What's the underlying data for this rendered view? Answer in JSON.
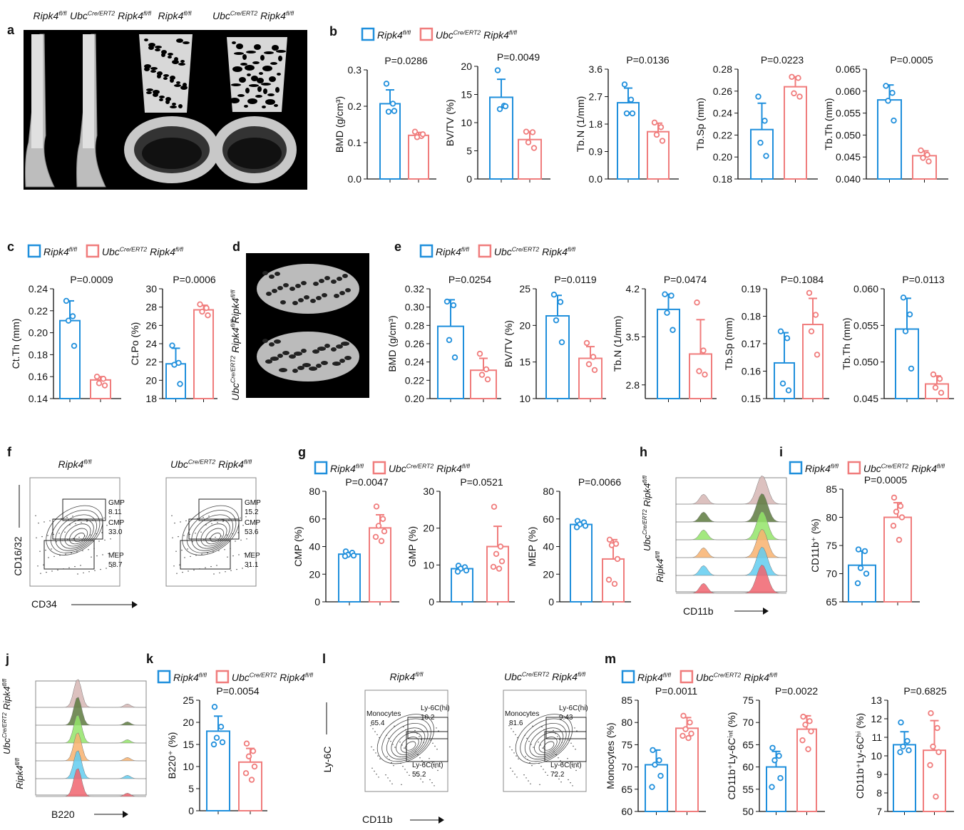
{
  "colors": {
    "control": "#1f8fdc",
    "knockout": "#f07c7c"
  },
  "genotypes": {
    "control": {
      "pre": "",
      "presup": "",
      "base": "Ripk4",
      "sup": "fl/fl"
    },
    "knockout": {
      "pre": "Ubc",
      "presup": "Cre/ERT2",
      "base": "Ripk4",
      "sup": "fl/fl"
    }
  },
  "panels": {
    "a": {
      "letter": "a"
    },
    "b": {
      "letter": "b"
    },
    "c": {
      "letter": "c"
    },
    "d": {
      "letter": "d"
    },
    "e": {
      "letter": "e"
    },
    "f": {
      "letter": "f"
    },
    "g": {
      "letter": "g"
    },
    "h": {
      "letter": "h"
    },
    "i": {
      "letter": "i"
    },
    "j": {
      "letter": "j"
    },
    "k": {
      "letter": "k"
    },
    "l": {
      "letter": "l"
    },
    "m": {
      "letter": "m"
    }
  },
  "flow": {
    "f": {
      "xlabel": "CD34",
      "ylabel": "CD16/32",
      "plots": [
        {
          "genotype": "control",
          "gates": [
            {
              "name": "GMP",
              "value": "8.11"
            },
            {
              "name": "CMP",
              "value": "33.0"
            },
            {
              "name": "MEP",
              "value": "58.7"
            }
          ]
        },
        {
          "genotype": "knockout",
          "gates": [
            {
              "name": "GMP",
              "value": "15.2"
            },
            {
              "name": "CMP",
              "value": "53.6"
            },
            {
              "name": "MEP",
              "value": "31.1"
            }
          ]
        }
      ]
    },
    "l": {
      "xlabel": "CD11b",
      "ylabel": "Ly-6C",
      "plots": [
        {
          "genotype": "control",
          "gates": [
            {
              "name": "Monocytes",
              "value": "65.4"
            },
            {
              "name": "Ly-6C(hi)",
              "value": "10.2"
            },
            {
              "name": "Ly-6C(int)",
              "value": "55.2"
            }
          ]
        },
        {
          "genotype": "knockout",
          "gates": [
            {
              "name": "Monocytes",
              "value": "81.6"
            },
            {
              "name": "Ly-6C(hi)",
              "value": "9.43"
            },
            {
              "name": "Ly-6C(int)",
              "value": "72.2"
            }
          ]
        }
      ]
    },
    "h": {
      "xlabel": "CD11b"
    },
    "j": {
      "xlabel": "B220"
    }
  },
  "chart_data": [
    {
      "id": "b1",
      "type": "bar",
      "panel": "b",
      "ylabel": "BMD (g/cm³)",
      "p_label": "P=0.0286",
      "ylim": [
        0,
        0.3
      ],
      "ticks": [
        "0.0",
        "0.1",
        "0.2",
        "0.3"
      ],
      "series": [
        {
          "group": "control",
          "mean": 0.207,
          "sd": 0.038,
          "points": [
            0.262,
            0.207,
            0.185,
            0.187
          ]
        },
        {
          "group": "knockout",
          "mean": 0.12,
          "sd": 0.008,
          "points": [
            0.13,
            0.118,
            0.115,
            0.123
          ]
        }
      ]
    },
    {
      "id": "b2",
      "type": "bar",
      "panel": "b",
      "ylabel": "BV/TV (%)",
      "p_label": "P=0.0049",
      "ylim": [
        0,
        20
      ],
      "ticks": [
        "0",
        "5",
        "10",
        "15",
        "20"
      ],
      "series": [
        {
          "group": "control",
          "mean": 14.5,
          "sd": 3.2,
          "points": [
            19.3,
            13,
            12.4,
            12.9
          ]
        },
        {
          "group": "knockout",
          "mean": 7,
          "sd": 1.4,
          "points": [
            8.4,
            8.3,
            6.5,
            5.5
          ]
        }
      ]
    },
    {
      "id": "b3",
      "type": "bar",
      "panel": "b",
      "ylabel": "Tb.N (1/mm)",
      "p_label": "P=0.0136",
      "ylim": [
        0,
        3.6
      ],
      "ticks": [
        "0.0",
        "0.9",
        "1.8",
        "2.7",
        "3.6"
      ],
      "series": [
        {
          "group": "control",
          "mean": 2.5,
          "sd": 0.48,
          "points": [
            3.1,
            2.6,
            2.15,
            2.15
          ]
        },
        {
          "group": "knockout",
          "mean": 1.55,
          "sd": 0.28,
          "points": [
            1.85,
            1.7,
            1.45,
            1.25
          ]
        }
      ]
    },
    {
      "id": "b4",
      "type": "bar",
      "panel": "b",
      "ylabel": "Tb.Sp (mm)",
      "p_label": "P=0.0223",
      "ylim": [
        0.18,
        0.28
      ],
      "ticks": [
        "0.18",
        "0.20",
        "0.22",
        "0.24",
        "0.26",
        "0.28"
      ],
      "series": [
        {
          "group": "control",
          "mean": 0.225,
          "sd": 0.024,
          "points": [
            0.255,
            0.233,
            0.213,
            0.201
          ]
        },
        {
          "group": "knockout",
          "mean": 0.264,
          "sd": 0.009,
          "points": [
            0.273,
            0.272,
            0.258,
            0.255
          ]
        }
      ]
    },
    {
      "id": "b5",
      "type": "bar",
      "panel": "b",
      "ylabel": "Tb.Th (mm)",
      "p_label": "P=0.0005",
      "ylim": [
        0.04,
        0.065
      ],
      "ticks": [
        "0.040",
        "0.045",
        "0.050",
        "0.055",
        "0.060",
        "0.065"
      ],
      "series": [
        {
          "group": "control",
          "mean": 0.058,
          "sd": 0.0034,
          "points": [
            0.0612,
            0.0596,
            0.0578,
            0.0533
          ]
        },
        {
          "group": "knockout",
          "mean": 0.0453,
          "sd": 0.0011,
          "points": [
            0.0465,
            0.0455,
            0.0448,
            0.044
          ]
        }
      ]
    },
    {
      "id": "c1",
      "type": "bar",
      "panel": "c",
      "ylabel": "Ct.Th (mm)",
      "p_label": "P=0.0009",
      "ylim": [
        0.14,
        0.24
      ],
      "ticks": [
        "0.14",
        "0.16",
        "0.18",
        "0.20",
        "0.22",
        "0.24"
      ],
      "series": [
        {
          "group": "control",
          "mean": 0.211,
          "sd": 0.018,
          "points": [
            0.229,
            0.215,
            0.211,
            0.188
          ]
        },
        {
          "group": "knockout",
          "mean": 0.157,
          "sd": 0.003,
          "points": [
            0.16,
            0.158,
            0.154,
            0.152
          ]
        }
      ]
    },
    {
      "id": "c2",
      "type": "bar",
      "panel": "c",
      "ylabel": "Ct.Po (%)",
      "p_label": "P=0.0006",
      "ylim": [
        18,
        30
      ],
      "ticks": [
        "18",
        "20",
        "22",
        "24",
        "26",
        "28",
        "30"
      ],
      "series": [
        {
          "group": "control",
          "mean": 21.8,
          "sd": 1.7,
          "points": [
            23.8,
            21.9,
            21.7,
            19.6
          ]
        },
        {
          "group": "knockout",
          "mean": 27.7,
          "sd": 0.5,
          "points": [
            28.3,
            27.9,
            27.5,
            27.1
          ]
        }
      ]
    },
    {
      "id": "e1",
      "type": "bar",
      "panel": "e",
      "ylabel": "BMD (g/cm³)",
      "p_label": "P=0.0254",
      "ylim": [
        0.2,
        0.32
      ],
      "ticks": [
        "0.20",
        "0.22",
        "0.24",
        "0.26",
        "0.28",
        "0.30",
        "0.32"
      ],
      "series": [
        {
          "group": "control",
          "mean": 0.279,
          "sd": 0.029,
          "points": [
            0.306,
            0.302,
            0.264,
            0.245
          ]
        },
        {
          "group": "knockout",
          "mean": 0.231,
          "sd": 0.013,
          "points": [
            0.249,
            0.232,
            0.226,
            0.221
          ]
        }
      ]
    },
    {
      "id": "e2",
      "type": "bar",
      "panel": "e",
      "ylabel": "BV/TV (%)",
      "p_label": "P=0.0119",
      "ylim": [
        10,
        25
      ],
      "ticks": [
        "10",
        "15",
        "20",
        "25"
      ],
      "series": [
        {
          "group": "control",
          "mean": 21.3,
          "sd": 2.8,
          "points": [
            24.2,
            23.2,
            20.7,
            17.7
          ]
        },
        {
          "group": "knockout",
          "mean": 15.5,
          "sd": 1.6,
          "points": [
            17.6,
            15.7,
            14.7,
            13.9
          ]
        }
      ]
    },
    {
      "id": "e3",
      "type": "bar",
      "panel": "e",
      "ylabel": "Tb.N (1/mm)",
      "p_label": "P=0.0474",
      "ylim": [
        2.6,
        4.2
      ],
      "ticks": [
        "2.8",
        "3.5",
        "4.2"
      ],
      "tick_values": [
        2.8,
        3.5,
        4.2
      ],
      "series": [
        {
          "group": "control",
          "mean": 3.9,
          "sd": 0.22,
          "points": [
            4.12,
            4.1,
            3.85,
            3.6
          ]
        },
        {
          "group": "knockout",
          "mean": 3.25,
          "sd": 0.5,
          "points": [
            4.0,
            3.3,
            3.0,
            2.95
          ]
        }
      ]
    },
    {
      "id": "e4",
      "type": "bar",
      "panel": "e",
      "ylabel": "Tb.Sp (mm)",
      "p_label": "P=0.1084",
      "ylim": [
        0.15,
        0.19
      ],
      "ticks": [
        "0.15",
        "0.16",
        "0.17",
        "0.18",
        "0.19"
      ],
      "series": [
        {
          "group": "control",
          "mean": 0.163,
          "sd": 0.011,
          "points": [
            0.1745,
            0.172,
            0.1555,
            0.153
          ]
        },
        {
          "group": "knockout",
          "mean": 0.177,
          "sd": 0.0095,
          "points": [
            0.1885,
            0.1805,
            0.1745,
            0.166
          ]
        }
      ]
    },
    {
      "id": "e5",
      "type": "bar",
      "panel": "e",
      "ylabel": "Tb.Th (mm)",
      "p_label": "P=0.0113",
      "ylim": [
        0.045,
        0.06
      ],
      "ticks": [
        "0.045",
        "0.050",
        "0.055",
        "0.060"
      ],
      "series": [
        {
          "group": "control",
          "mean": 0.0545,
          "sd": 0.0042,
          "points": [
            0.0588,
            0.0565,
            0.0542,
            0.0491
          ]
        },
        {
          "group": "knockout",
          "mean": 0.047,
          "sd": 0.0011,
          "points": [
            0.0483,
            0.0477,
            0.0465,
            0.0458
          ]
        }
      ]
    },
    {
      "id": "g1",
      "type": "bar",
      "panel": "g",
      "ylabel": "CMP (%)",
      "p_label": "P=0.0047",
      "ylim": [
        0,
        80
      ],
      "ticks": [
        "0",
        "20",
        "40",
        "60",
        "80"
      ],
      "series": [
        {
          "group": "control",
          "mean": 34.5,
          "sd": 1.3,
          "points": [
            36.5,
            35.5,
            34,
            33.5,
            33
          ]
        },
        {
          "group": "knockout",
          "mean": 53.5,
          "sd": 9.5,
          "points": [
            69,
            60,
            55,
            51,
            47,
            44
          ]
        }
      ]
    },
    {
      "id": "g2",
      "type": "bar",
      "panel": "g",
      "ylabel": "GMP (%)",
      "p_label": "P=0.0521",
      "ylim": [
        0,
        30
      ],
      "ticks": [
        "0",
        "10",
        "20",
        "30"
      ],
      "series": [
        {
          "group": "control",
          "mean": 9,
          "sd": 0.6,
          "points": [
            9.8,
            9.4,
            9,
            8.5,
            8.2
          ]
        },
        {
          "group": "knockout",
          "mean": 15,
          "sd": 5.5,
          "points": [
            25.8,
            15,
            13,
            11,
            9.5,
            9
          ]
        }
      ]
    },
    {
      "id": "g3",
      "type": "bar",
      "panel": "g",
      "ylabel": "MEP (%)",
      "p_label": "P=0.0066",
      "ylim": [
        0,
        80
      ],
      "ticks": [
        "0",
        "20",
        "40",
        "60",
        "80"
      ],
      "series": [
        {
          "group": "control",
          "mean": 56,
          "sd": 1.8,
          "points": [
            58.5,
            57.5,
            56,
            55,
            54
          ]
        },
        {
          "group": "knockout",
          "mean": 31,
          "sd": 14,
          "points": [
            45,
            42,
            41,
            31,
            16,
            13
          ]
        }
      ]
    },
    {
      "id": "i1",
      "type": "bar",
      "panel": "i",
      "ylabel": "CD11b⁺ (%)",
      "p_label": "P=0.0005",
      "ylim": [
        65,
        85
      ],
      "ticks": [
        "65",
        "70",
        "75",
        "80",
        "85"
      ],
      "series": [
        {
          "group": "control",
          "mean": 71.5,
          "sd": 2.5,
          "points": [
            74.3,
            74,
            71,
            70,
            68.3
          ]
        },
        {
          "group": "knockout",
          "mean": 80,
          "sd": 2.6,
          "points": [
            83.5,
            82,
            81,
            80,
            78.5,
            76
          ]
        }
      ]
    },
    {
      "id": "k1",
      "type": "bar",
      "panel": "k",
      "ylabel": "B220⁺ (%)",
      "p_label": "P=0.0054",
      "ylim": [
        0,
        25
      ],
      "ticks": [
        "0",
        "5",
        "10",
        "15",
        "20",
        "25"
      ],
      "series": [
        {
          "group": "control",
          "mean": 18,
          "sd": 3.4,
          "points": [
            23.5,
            19,
            16.5,
            15.5,
            15
          ]
        },
        {
          "group": "knockout",
          "mean": 11,
          "sd": 3.1,
          "points": [
            15.2,
            13.5,
            12.3,
            10,
            8.5,
            7
          ]
        }
      ]
    },
    {
      "id": "m1",
      "type": "bar",
      "panel": "m",
      "ylabel": "Monocytes (%)",
      "p_label": "P=0.0011",
      "ylim": [
        60,
        85
      ],
      "ticks": [
        "60",
        "65",
        "70",
        "75",
        "80",
        "85"
      ],
      "series": [
        {
          "group": "control",
          "mean": 70.5,
          "sd": 3.3,
          "points": [
            73.8,
            71.5,
            70.5,
            68,
            65.5
          ]
        },
        {
          "group": "knockout",
          "mean": 78.7,
          "sd": 2.4,
          "points": [
            81.5,
            80,
            78.5,
            77.5,
            77,
            76.5
          ]
        }
      ]
    },
    {
      "id": "m2",
      "type": "bar",
      "panel": "m",
      "ylabel": "CD11b⁺Ly-6Cⁱⁿᵗ (%)",
      "p_label": "P=0.0022",
      "ylim": [
        50,
        75
      ],
      "ticks": [
        "50",
        "55",
        "60",
        "65",
        "70",
        "75"
      ],
      "series": [
        {
          "group": "control",
          "mean": 60,
          "sd": 3.5,
          "points": [
            64.3,
            62.5,
            61.5,
            57.5,
            55.5
          ]
        },
        {
          "group": "knockout",
          "mean": 68.5,
          "sd": 3,
          "points": [
            71.3,
            70.3,
            69.5,
            68,
            66,
            64
          ]
        }
      ]
    },
    {
      "id": "m3",
      "type": "bar",
      "panel": "m",
      "ylabel": "CD11b⁺Ly-6Cʰⁱ (%)",
      "p_label": "P=0.6825",
      "ylim": [
        7,
        13
      ],
      "ticks": [
        "7",
        "8",
        "9",
        "10",
        "11",
        "12",
        "13"
      ],
      "series": [
        {
          "group": "control",
          "mean": 10.6,
          "sd": 0.7,
          "points": [
            11.8,
            10.8,
            10.5,
            10.3,
            10.2
          ]
        },
        {
          "group": "knockout",
          "mean": 10.3,
          "sd": 1.6,
          "points": [
            12.3,
            11.5,
            10.5,
            10.2,
            9.5,
            7.8
          ]
        }
      ]
    }
  ]
}
